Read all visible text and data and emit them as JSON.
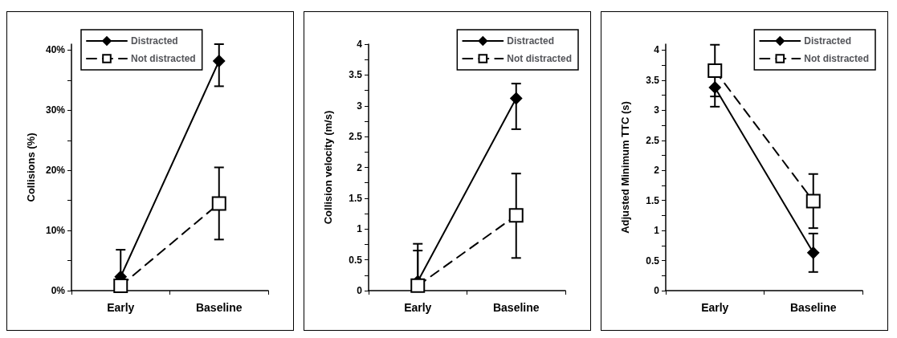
{
  "chart_data": [
    {
      "type": "line",
      "ylabel": "Collisions (%)",
      "categories": [
        "Early",
        "Baseline"
      ],
      "ylim": [
        0,
        41
      ],
      "yticks": [
        {
          "value": 0,
          "label": "0%"
        },
        {
          "value": 5,
          "label": null
        },
        {
          "value": 10,
          "label": "10%"
        },
        {
          "value": 15,
          "label": null
        },
        {
          "value": 20,
          "label": "20%"
        },
        {
          "value": 25,
          "label": null
        },
        {
          "value": 30,
          "label": "30%"
        },
        {
          "value": 35,
          "label": null
        },
        {
          "value": 40,
          "label": "40%"
        }
      ],
      "legend": "top left",
      "grid": false,
      "series": [
        {
          "name": "Distracted",
          "color": "#000000",
          "marker": "diamond",
          "line_style": "solid",
          "values": [
            2.3,
            38.2
          ],
          "errors": [
            [
              0,
              6.8
            ],
            [
              34,
              41
            ]
          ]
        },
        {
          "name": "Not distracted",
          "color": "#000000",
          "marker": "square",
          "line_style": "dashed",
          "values": [
            0.8,
            14.5
          ],
          "errors": [
            null,
            [
              8.5,
              20.5
            ]
          ]
        }
      ]
    },
    {
      "type": "line",
      "ylabel": "Collision velocity (m/s)",
      "categories": [
        "Early",
        "Baseline"
      ],
      "ylim": [
        0,
        4
      ],
      "yticks": [
        0,
        {
          "value": 0.25,
          "label": null
        },
        0.5,
        {
          "value": 0.75,
          "label": null
        },
        1,
        {
          "value": 1.25,
          "label": null
        },
        1.5,
        {
          "value": 1.75,
          "label": null
        },
        2,
        {
          "value": 2.25,
          "label": null
        },
        2.5,
        {
          "value": 2.75,
          "label": null
        },
        3,
        {
          "value": 3.25,
          "label": null
        },
        3.5,
        {
          "value": 3.75,
          "label": null
        },
        4
      ],
      "legend": "top right",
      "grid": false,
      "series": [
        {
          "name": "Distracted",
          "color": "#000000",
          "marker": "diamond",
          "line_style": "solid",
          "values": [
            0.15,
            3.12
          ],
          "errors": [
            [
              0,
              0.76
            ],
            [
              2.62,
              3.36
            ]
          ]
        },
        {
          "name": "Not distracted",
          "color": "#000000",
          "marker": "square",
          "line_style": "dashed",
          "values": [
            0.08,
            1.22
          ],
          "errors": [
            [
              0,
              0.65
            ],
            [
              0.53,
              1.9
            ]
          ]
        }
      ]
    },
    {
      "type": "line",
      "ylabel": "Adjusted Minimum TTC (s)",
      "categories": [
        "Early",
        "Baseline"
      ],
      "ylim": [
        0,
        4.1
      ],
      "yticks": [
        0,
        {
          "value": 0.25,
          "label": null
        },
        0.5,
        {
          "value": 0.75,
          "label": null
        },
        1,
        {
          "value": 1.25,
          "label": null
        },
        1.5,
        {
          "value": 1.75,
          "label": null
        },
        2,
        {
          "value": 2.25,
          "label": null
        },
        2.5,
        {
          "value": 2.75,
          "label": null
        },
        3,
        {
          "value": 3.25,
          "label": null
        },
        3.5,
        {
          "value": 3.75,
          "label": null
        },
        4
      ],
      "legend": "top right",
      "grid": false,
      "series": [
        {
          "name": "Distracted",
          "color": "#000000",
          "marker": "diamond",
          "line_style": "solid",
          "values": [
            3.38,
            0.63
          ],
          "errors": [
            [
              3.06,
              3.38
            ],
            [
              0.31,
              0.95
            ]
          ]
        },
        {
          "name": "Not distracted",
          "color": "#000000",
          "marker": "square",
          "line_style": "dashed",
          "values": [
            3.66,
            1.49
          ],
          "errors": [
            [
              3.23,
              4.09
            ],
            [
              1.04,
              1.94
            ]
          ]
        }
      ]
    }
  ]
}
